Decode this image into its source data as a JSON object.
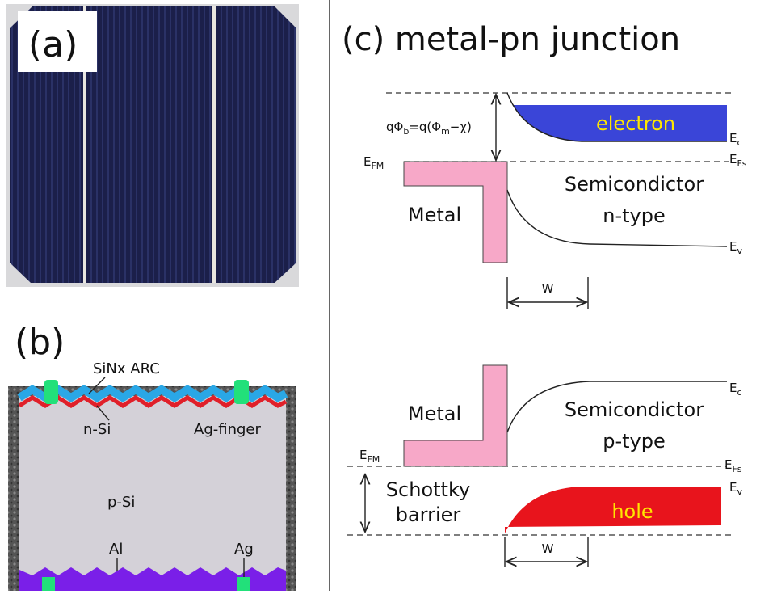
{
  "panel_a": {
    "label": "(a)"
  },
  "panel_b": {
    "label": "(b)",
    "layers": {
      "arc": "SiNx ARC",
      "emitter": "n-Si",
      "finger": "Ag-finger",
      "base": "p-Si",
      "rear": "Al",
      "rear_contact": "Ag"
    }
  },
  "panel_c": {
    "title": "(c) metal-pn junction",
    "n_type": {
      "barrier_formula": [
        "qΦ",
        "b",
        "=q(Φ",
        "m",
        "−χ)"
      ],
      "carrier": "electron",
      "Ec": {
        "base": "E",
        "sub": "c"
      },
      "EFs": {
        "base": "E",
        "sub": "Fs"
      },
      "EFM": {
        "base": "E",
        "sub": "FM"
      },
      "Ev": {
        "base": "E",
        "sub": "v"
      },
      "semiconductor": [
        "Semicondictor",
        "n-type"
      ],
      "metal": "Metal",
      "width": "W"
    },
    "p_type": {
      "carrier": "hole",
      "Ec": {
        "base": "E",
        "sub": "c"
      },
      "EFs": {
        "base": "E",
        "sub": "Fs"
      },
      "EFM": {
        "base": "E",
        "sub": "FM"
      },
      "Ev": {
        "base": "E",
        "sub": "v"
      },
      "semiconductor": [
        "Semicondictor",
        "p-type"
      ],
      "metal": "Metal",
      "barrier": [
        "Schottky",
        "barrier"
      ],
      "width": "W"
    }
  }
}
